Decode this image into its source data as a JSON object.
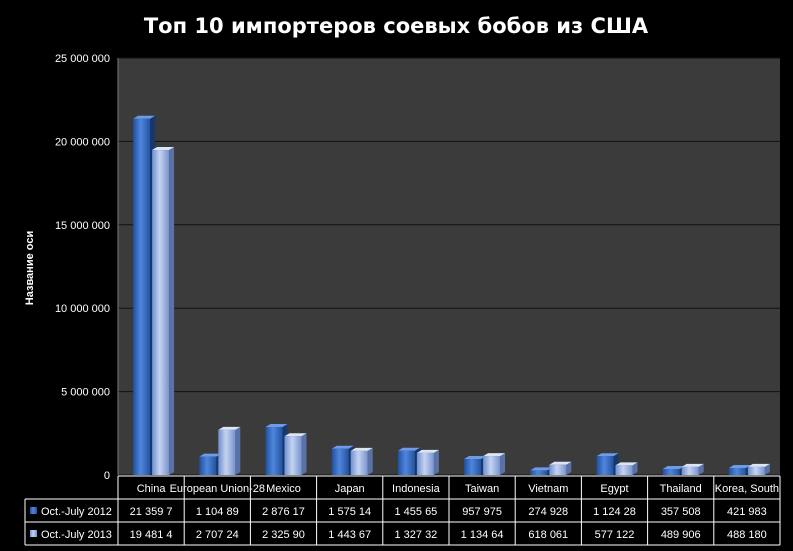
{
  "chart_data": {
    "type": "bar",
    "title": "Топ 10 импортеров соевых бобов из США",
    "ylabel": "Название оси",
    "xlabel": "",
    "ylim": [
      0,
      25000000
    ],
    "yticks": [
      0,
      5000000,
      10000000,
      15000000,
      20000000,
      25000000
    ],
    "ytick_labels": [
      "0",
      "5 000 000",
      "10 000 000",
      "15 000 000",
      "20 000 000",
      "25 000 000"
    ],
    "grid": true,
    "legend_position": "bottom-left (data table)",
    "categories": [
      "China",
      "European Union-28",
      "Mexico",
      "Japan",
      "Indonesia",
      "Taiwan",
      "Vietnam",
      "Egypt",
      "Thailand",
      "Korea, South"
    ],
    "series": [
      {
        "name": "Oct.-July 2012",
        "color": "#3A6FC4",
        "values": [
          21359700,
          1104890,
          2876170,
          1575140,
          1455650,
          957975,
          274928,
          1124280,
          357508,
          421983
        ],
        "table_labels": [
          "21 359 7",
          "1 104 89",
          "2 876 17",
          "1 575 14",
          "1 455 65",
          "957 975",
          "274 928",
          "1 124 28",
          "357 508",
          "421 983"
        ]
      },
      {
        "name": "Oct.-July 2013",
        "color": "#9DB5E3",
        "values": [
          19481400,
          2707240,
          2325900,
          1443670,
          1327320,
          1134640,
          618061,
          577122,
          489906,
          488180
        ],
        "table_labels": [
          "19 481 4",
          "2 707 24",
          "2 325 90",
          "1 443 67",
          "1 327 32",
          "1 134 64",
          "618 061",
          "577 122",
          "489 906",
          "488 180"
        ]
      }
    ]
  }
}
